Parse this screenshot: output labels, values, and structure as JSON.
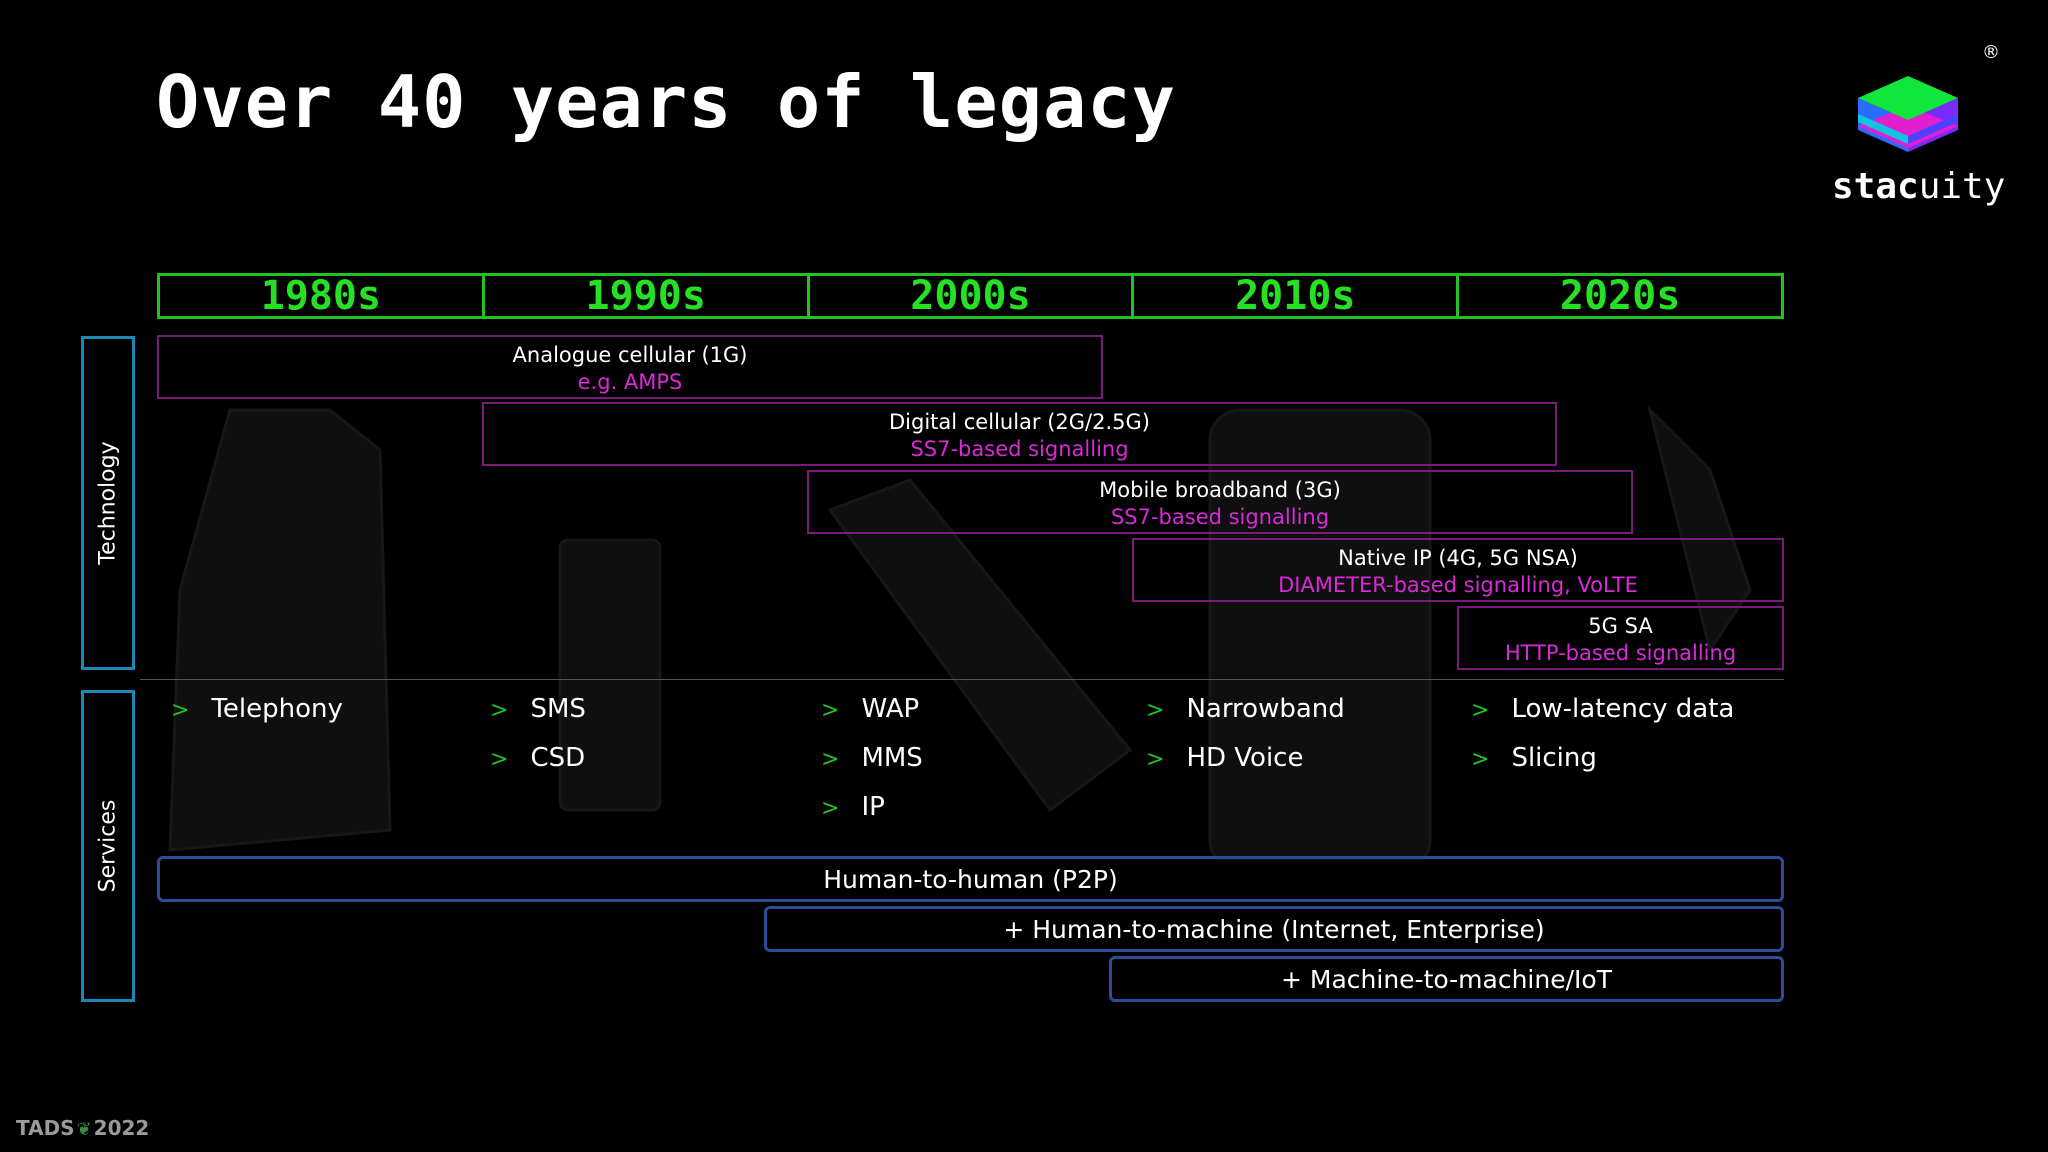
{
  "title": "Over 40 years of legacy",
  "logo": {
    "brand_bold": "stac",
    "brand_light": "uity",
    "registered": "®"
  },
  "decades": [
    "1980s",
    "1990s",
    "2000s",
    "2010s",
    "2020s"
  ],
  "side_labels": {
    "technology": "Technology",
    "services": "Services"
  },
  "technologies": [
    {
      "name": "Analogue cellular (1G)",
      "detail": "e.g. AMPS"
    },
    {
      "name": "Digital cellular (2G/2.5G)",
      "detail": "SS7-based signalling"
    },
    {
      "name": "Mobile broadband (3G)",
      "detail": "SS7-based signalling"
    },
    {
      "name": "Native IP (4G, 5G NSA)",
      "detail": "DIAMETER-based signalling, VoLTE"
    },
    {
      "name": "5G SA",
      "detail": "HTTP-based signalling"
    }
  ],
  "services": {
    "arrow": ">",
    "d1980s": [
      "Telephony"
    ],
    "d1990s": [
      "SMS",
      "CSD"
    ],
    "d2000s": [
      "WAP",
      "MMS",
      "IP"
    ],
    "d2010s": [
      "Narrowband",
      "HD Voice"
    ],
    "d2020s": [
      "Low-latency data",
      "Slicing"
    ]
  },
  "bands": [
    "Human-to-human (P2P)",
    "+ Human-to-machine (Internet, Enterprise)",
    "+ Machine-to-machine/IoT"
  ],
  "footer": {
    "left": "TADS",
    "right": "2022"
  },
  "colors": {
    "decade_green": "#25e025",
    "tech_border": "#7a1a7a",
    "tech_detail": "#d92ad9",
    "band_border": "#2c4d96",
    "side_border": "#1b88b5"
  }
}
